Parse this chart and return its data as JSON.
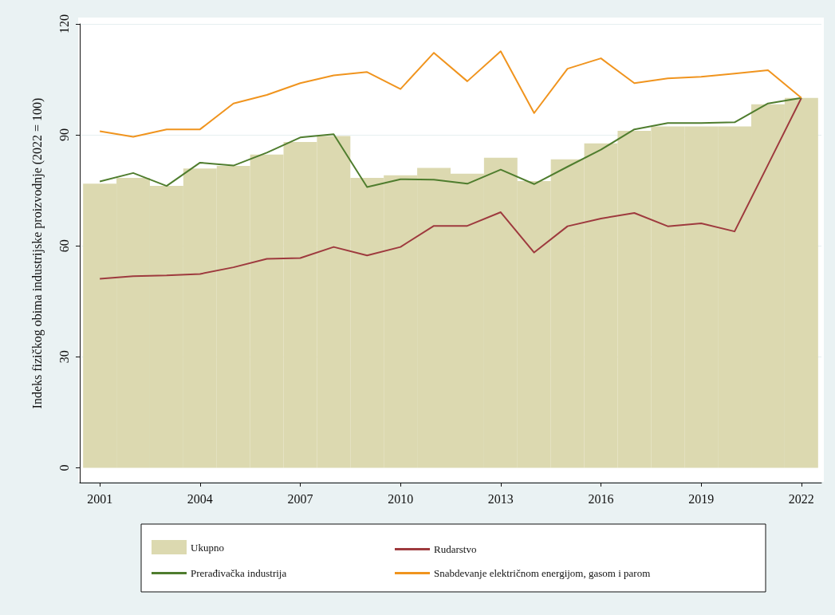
{
  "chart_data": {
    "type": "line",
    "ylabel": "Indeks fizičkog obima industrijske proizvodnje (2022 = 100)",
    "x": [
      2001,
      2002,
      2003,
      2004,
      2005,
      2006,
      2007,
      2008,
      2009,
      2010,
      2011,
      2012,
      2013,
      2014,
      2015,
      2016,
      2017,
      2018,
      2019,
      2020,
      2021,
      2022
    ],
    "series": [
      {
        "name": "Ukupno",
        "type": "bar",
        "color": "#dcd9b0",
        "values": [
          76.8,
          78.4,
          76.2,
          80.9,
          81.6,
          84.7,
          88.1,
          89.7,
          78.4,
          79.1,
          81.1,
          79.5,
          83.8,
          77.5,
          83.4,
          87.7,
          91.1,
          92.3,
          92.3,
          92.3,
          98.3,
          100
        ]
      },
      {
        "name": "Rudarstvo",
        "color": "#9e3a3e",
        "values": [
          51.1,
          51.8,
          52.0,
          52.4,
          54.2,
          56.5,
          56.7,
          59.7,
          57.4,
          59.7,
          65.4,
          65.4,
          69.1,
          58.2,
          65.3,
          67.4,
          68.9,
          65.3,
          66.1,
          63.9,
          81.9,
          100
        ]
      },
      {
        "name": "Prerađivačka industrija",
        "color": "#4f7d2e",
        "values": [
          77.4,
          79.7,
          76.2,
          82.5,
          81.7,
          85.2,
          89.3,
          90.2,
          75.9,
          78.0,
          77.9,
          76.8,
          80.6,
          76.7,
          81.4,
          86.0,
          91.5,
          93.2,
          93.2,
          93.4,
          98.5,
          100
        ]
      },
      {
        "name": "Snabdevanje električnom energijom, gasom i parom",
        "color": "#f0941e",
        "values": [
          91.0,
          89.5,
          91.5,
          91.5,
          98.5,
          100.8,
          104.0,
          106.1,
          107.0,
          102.4,
          112.2,
          104.5,
          112.6,
          95.9,
          107.9,
          110.7,
          104.0,
          105.3,
          105.7,
          106.6,
          107.5,
          100
        ]
      }
    ],
    "xlim": [
      2000.4,
      2022.6
    ],
    "xticks": [
      2001,
      2004,
      2007,
      2010,
      2013,
      2016,
      2019,
      2022
    ],
    "ylim": [
      -4,
      120
    ],
    "yticks": [
      0,
      30,
      60,
      90,
      120
    ],
    "grid": "y",
    "legend": "bottom",
    "marker": "none",
    "line_style": "solid"
  }
}
